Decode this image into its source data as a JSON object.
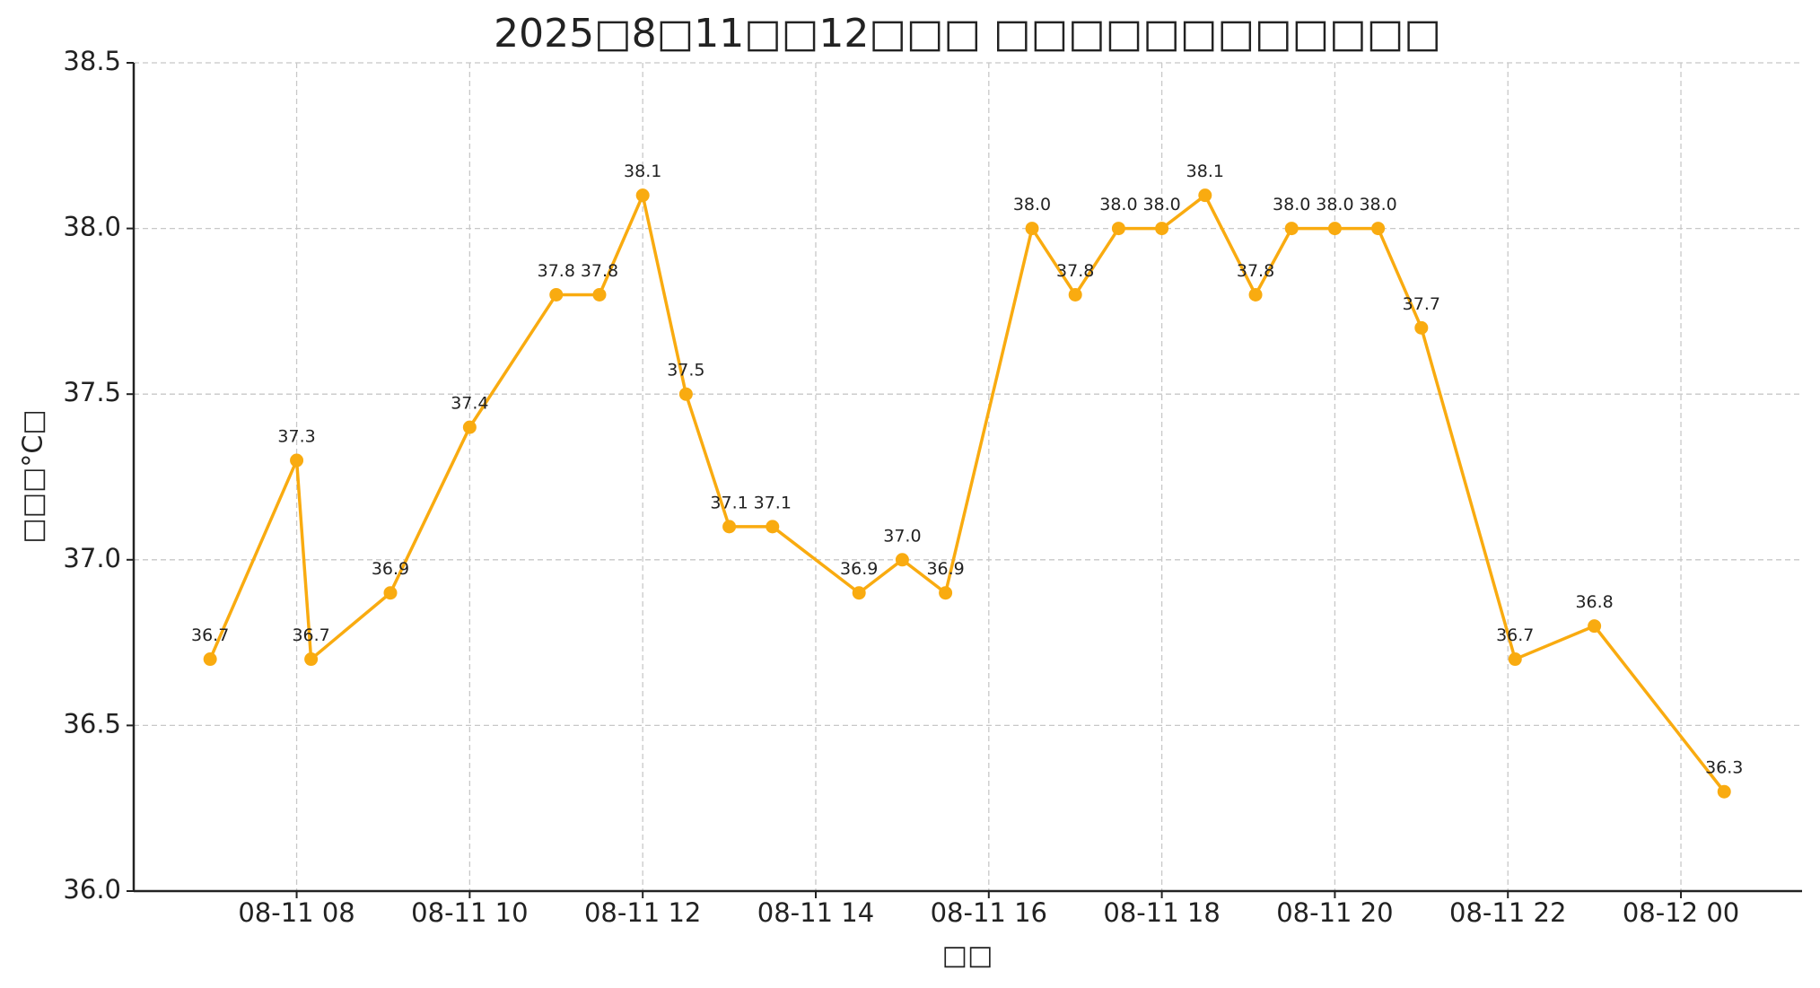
{
  "chart_data": {
    "type": "line",
    "title": "2025□8□11□□12□□□ □□□□□□□□□□□□",
    "x_label": "□□",
    "y_label": "□□□°C□",
    "x": [
      "08-11 07:00",
      "08-11 08:00",
      "08-11 08:10",
      "08-11 09:05",
      "08-11 10:00",
      "08-11 11:00",
      "08-11 11:30",
      "08-11 12:00",
      "08-11 12:30",
      "08-11 13:00",
      "08-11 13:30",
      "08-11 14:30",
      "08-11 15:00",
      "08-11 15:30",
      "08-11 16:30",
      "08-11 17:00",
      "08-11 17:30",
      "08-11 18:00",
      "08-11 18:30",
      "08-11 19:05",
      "08-11 19:30",
      "08-11 20:00",
      "08-11 20:30",
      "08-11 21:00",
      "08-11 22:05",
      "08-11 23:00",
      "08-12 00:30"
    ],
    "series": [
      {
        "color": "#f9ab10",
        "values": [
          36.7,
          37.3,
          36.7,
          36.9,
          37.4,
          37.8,
          37.8,
          38.1,
          37.5,
          37.1,
          37.1,
          36.9,
          37.0,
          36.9,
          38.0,
          37.8,
          38.0,
          38.0,
          38.1,
          37.8,
          38.0,
          38.0,
          38.0,
          37.7,
          36.7,
          36.8,
          36.3
        ],
        "value_labels": [
          "36.7",
          "37.3",
          "36.7",
          "36.9",
          "37.4",
          "37.8",
          "37.8",
          "38.1",
          "37.5",
          "37.1",
          "37.1",
          "36.9",
          "37.0",
          "36.9",
          "38.0",
          "37.8",
          "38.0",
          "38.0",
          "38.1",
          "37.8",
          "38.0",
          "38.0",
          "38.0",
          "37.7",
          "36.7",
          "36.8",
          "36.3"
        ]
      }
    ],
    "xlim": [
      "08-11 06:07",
      "08-12 01:24"
    ],
    "xticks": [
      {
        "value": "08-11 08:00",
        "label": "08-11 08"
      },
      {
        "value": "08-11 10:00",
        "label": "08-11 10"
      },
      {
        "value": "08-11 12:00",
        "label": "08-11 12"
      },
      {
        "value": "08-11 14:00",
        "label": "08-11 14"
      },
      {
        "value": "08-11 16:00",
        "label": "08-11 16"
      },
      {
        "value": "08-11 18:00",
        "label": "08-11 18"
      },
      {
        "value": "08-11 20:00",
        "label": "08-11 20"
      },
      {
        "value": "08-11 22:00",
        "label": "08-11 22"
      },
      {
        "value": "08-12 00:00",
        "label": "08-12 00"
      }
    ],
    "ylim": [
      36,
      38.5
    ],
    "yticks": [
      {
        "value": 36,
        "label": "36.0"
      },
      {
        "value": 36.5,
        "label": "36.5"
      },
      {
        "value": 37,
        "label": "37.0"
      },
      {
        "value": 37.5,
        "label": "37.5"
      },
      {
        "value": 38,
        "label": "38.0"
      },
      {
        "value": 38.5,
        "label": "38.5"
      }
    ],
    "grid": true
  }
}
